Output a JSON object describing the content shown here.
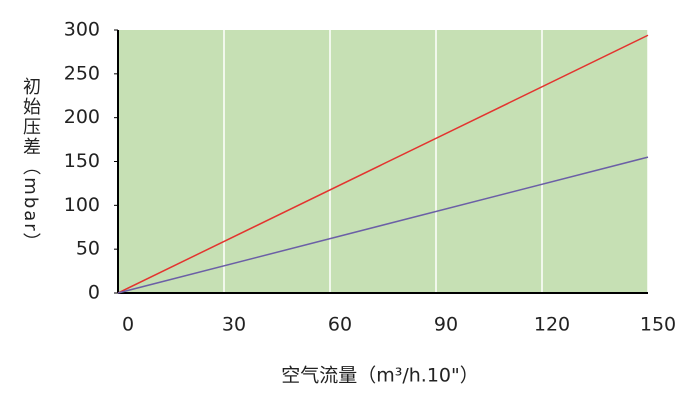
{
  "chart_data": {
    "type": "line",
    "y_label": "初始压差（mbar）",
    "x_label": "空气流量（m³/h.10\"）",
    "x": [
      0,
      150
    ],
    "series": [
      {
        "color": "#e3342f",
        "values": [
          0,
          294
        ]
      },
      {
        "color": "#6b5fa6",
        "values": [
          0,
          155
        ]
      }
    ],
    "xlim": [
      0,
      150
    ],
    "xticks": [
      0,
      30,
      60,
      90,
      120,
      150
    ],
    "ylim": [
      0,
      300
    ],
    "yticks": [
      0,
      50,
      100,
      150,
      200,
      250,
      300
    ],
    "grid": true,
    "plot_color": "#c6e0b4"
  }
}
